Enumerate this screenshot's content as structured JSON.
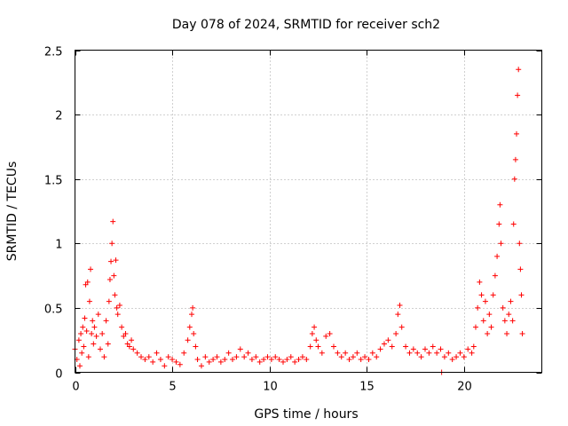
{
  "chart_data": {
    "type": "scatter",
    "title": "Day 078 of 2024, SRMTID for receiver sch2",
    "xlabel": "GPS time / hours",
    "ylabel": "SRMTID / TECUs",
    "xlim": [
      0,
      24
    ],
    "ylim": [
      0,
      2.5
    ],
    "xticks": [
      0,
      5,
      10,
      15,
      20
    ],
    "xtick_labels": [
      "0",
      "5",
      "10",
      "15",
      "20"
    ],
    "yticks": [
      0,
      0.5,
      1,
      1.5,
      2,
      2.5
    ],
    "ytick_labels": [
      "0",
      "0.5",
      "1",
      "1.5",
      "2",
      "2.5"
    ],
    "grid": true,
    "marker": "+",
    "series": [
      {
        "name": "sch2",
        "color": "#ff0000",
        "points": [
          [
            0.0,
            0.18
          ],
          [
            0.1,
            0.1
          ],
          [
            0.2,
            0.25
          ],
          [
            0.25,
            0.05
          ],
          [
            0.3,
            0.3
          ],
          [
            0.35,
            0.15
          ],
          [
            0.4,
            0.35
          ],
          [
            0.45,
            0.2
          ],
          [
            0.5,
            0.42
          ],
          [
            0.55,
            0.68
          ],
          [
            0.6,
            0.32
          ],
          [
            0.65,
            0.7
          ],
          [
            0.7,
            0.12
          ],
          [
            0.75,
            0.55
          ],
          [
            0.8,
            0.8
          ],
          [
            0.85,
            0.3
          ],
          [
            0.9,
            0.4
          ],
          [
            0.95,
            0.22
          ],
          [
            1.0,
            0.35
          ],
          [
            1.1,
            0.28
          ],
          [
            1.2,
            0.45
          ],
          [
            1.3,
            0.18
          ],
          [
            1.4,
            0.3
          ],
          [
            1.5,
            0.12
          ],
          [
            1.6,
            0.4
          ],
          [
            1.7,
            0.22
          ],
          [
            1.75,
            0.55
          ],
          [
            1.8,
            0.72
          ],
          [
            1.85,
            0.86
          ],
          [
            1.9,
            1.0
          ],
          [
            1.95,
            1.17
          ],
          [
            2.0,
            0.75
          ],
          [
            2.05,
            0.6
          ],
          [
            2.1,
            0.87
          ],
          [
            2.15,
            0.5
          ],
          [
            2.2,
            0.45
          ],
          [
            2.3,
            0.52
          ],
          [
            2.4,
            0.35
          ],
          [
            2.5,
            0.28
          ],
          [
            2.6,
            0.3
          ],
          [
            2.7,
            0.22
          ],
          [
            2.8,
            0.2
          ],
          [
            2.9,
            0.25
          ],
          [
            3.0,
            0.18
          ],
          [
            3.2,
            0.15
          ],
          [
            3.4,
            0.12
          ],
          [
            3.6,
            0.1
          ],
          [
            3.8,
            0.12
          ],
          [
            4.0,
            0.08
          ],
          [
            4.2,
            0.15
          ],
          [
            4.4,
            0.1
          ],
          [
            4.6,
            0.05
          ],
          [
            4.8,
            0.12
          ],
          [
            5.0,
            0.1
          ],
          [
            5.2,
            0.08
          ],
          [
            5.4,
            0.06
          ],
          [
            5.6,
            0.15
          ],
          [
            5.8,
            0.25
          ],
          [
            5.9,
            0.35
          ],
          [
            6.0,
            0.45
          ],
          [
            6.05,
            0.5
          ],
          [
            6.1,
            0.3
          ],
          [
            6.2,
            0.2
          ],
          [
            6.3,
            0.1
          ],
          [
            6.5,
            0.05
          ],
          [
            6.7,
            0.12
          ],
          [
            6.9,
            0.08
          ],
          [
            7.1,
            0.1
          ],
          [
            7.3,
            0.12
          ],
          [
            7.5,
            0.08
          ],
          [
            7.7,
            0.1
          ],
          [
            7.9,
            0.15
          ],
          [
            8.1,
            0.1
          ],
          [
            8.3,
            0.12
          ],
          [
            8.5,
            0.18
          ],
          [
            8.7,
            0.12
          ],
          [
            8.9,
            0.15
          ],
          [
            9.1,
            0.1
          ],
          [
            9.3,
            0.12
          ],
          [
            9.5,
            0.08
          ],
          [
            9.7,
            0.1
          ],
          [
            9.9,
            0.12
          ],
          [
            10.1,
            0.1
          ],
          [
            10.3,
            0.12
          ],
          [
            10.5,
            0.1
          ],
          [
            10.7,
            0.08
          ],
          [
            10.9,
            0.1
          ],
          [
            11.1,
            0.12
          ],
          [
            11.3,
            0.08
          ],
          [
            11.5,
            0.1
          ],
          [
            11.7,
            0.12
          ],
          [
            11.9,
            0.1
          ],
          [
            12.1,
            0.2
          ],
          [
            12.2,
            0.3
          ],
          [
            12.3,
            0.35
          ],
          [
            12.4,
            0.25
          ],
          [
            12.5,
            0.2
          ],
          [
            12.7,
            0.15
          ],
          [
            12.9,
            0.28
          ],
          [
            13.1,
            0.3
          ],
          [
            13.3,
            0.2
          ],
          [
            13.5,
            0.15
          ],
          [
            13.7,
            0.12
          ],
          [
            13.9,
            0.15
          ],
          [
            14.1,
            0.1
          ],
          [
            14.3,
            0.12
          ],
          [
            14.5,
            0.15
          ],
          [
            14.7,
            0.1
          ],
          [
            14.9,
            0.12
          ],
          [
            15.1,
            0.1
          ],
          [
            15.3,
            0.15
          ],
          [
            15.5,
            0.12
          ],
          [
            15.7,
            0.18
          ],
          [
            15.9,
            0.22
          ],
          [
            16.1,
            0.25
          ],
          [
            16.3,
            0.2
          ],
          [
            16.5,
            0.3
          ],
          [
            16.6,
            0.45
          ],
          [
            16.7,
            0.52
          ],
          [
            16.8,
            0.35
          ],
          [
            17.0,
            0.2
          ],
          [
            17.2,
            0.15
          ],
          [
            17.4,
            0.18
          ],
          [
            17.6,
            0.15
          ],
          [
            17.8,
            0.12
          ],
          [
            18.0,
            0.18
          ],
          [
            18.2,
            0.15
          ],
          [
            18.4,
            0.2
          ],
          [
            18.6,
            0.15
          ],
          [
            18.8,
            0.18
          ],
          [
            18.85,
            0.0
          ],
          [
            19.0,
            0.12
          ],
          [
            19.2,
            0.15
          ],
          [
            19.4,
            0.1
          ],
          [
            19.6,
            0.12
          ],
          [
            19.8,
            0.15
          ],
          [
            20.0,
            0.12
          ],
          [
            20.2,
            0.18
          ],
          [
            20.4,
            0.15
          ],
          [
            20.5,
            0.2
          ],
          [
            20.6,
            0.35
          ],
          [
            20.7,
            0.5
          ],
          [
            20.8,
            0.7
          ],
          [
            20.9,
            0.6
          ],
          [
            21.0,
            0.4
          ],
          [
            21.1,
            0.55
          ],
          [
            21.2,
            0.3
          ],
          [
            21.3,
            0.45
          ],
          [
            21.4,
            0.35
          ],
          [
            21.5,
            0.6
          ],
          [
            21.6,
            0.75
          ],
          [
            21.7,
            0.9
          ],
          [
            21.8,
            1.15
          ],
          [
            21.85,
            1.3
          ],
          [
            21.9,
            1.0
          ],
          [
            22.0,
            0.5
          ],
          [
            22.1,
            0.4
          ],
          [
            22.2,
            0.3
          ],
          [
            22.3,
            0.45
          ],
          [
            22.4,
            0.55
          ],
          [
            22.5,
            0.4
          ],
          [
            22.55,
            1.15
          ],
          [
            22.6,
            1.5
          ],
          [
            22.65,
            1.65
          ],
          [
            22.7,
            1.85
          ],
          [
            22.75,
            2.15
          ],
          [
            22.8,
            2.35
          ],
          [
            22.85,
            1.0
          ],
          [
            22.9,
            0.8
          ],
          [
            22.95,
            0.6
          ],
          [
            23.0,
            0.3
          ]
        ]
      }
    ]
  }
}
